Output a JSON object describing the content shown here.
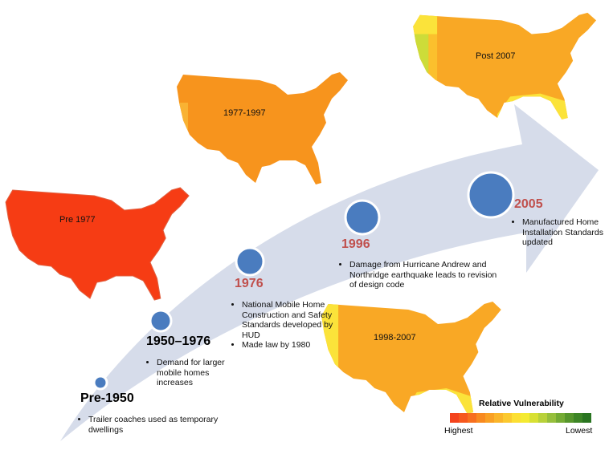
{
  "timeline": {
    "milestones": [
      {
        "label": "Pre-1950",
        "bullets": [
          "Trailer coaches used as temporary dwellings"
        ]
      },
      {
        "label": "1950–1976",
        "bullets": [
          "Demand for larger mobile homes increases"
        ]
      },
      {
        "label": "1976",
        "bullets": [
          "National Mobile Home Construction and Safety Standards developed by HUD",
          "Made law by 1980"
        ]
      },
      {
        "label": "1996",
        "bullets": [
          "Damage from Hurricane Andrew and Northridge earthquake leads to revision of design code"
        ]
      },
      {
        "label": "2005",
        "bullets": [
          "Manufactured Home Installation Standards updated"
        ]
      }
    ]
  },
  "maps": [
    {
      "label": "Pre 1977"
    },
    {
      "label": "1977-1997"
    },
    {
      "label": "1998-2007"
    },
    {
      "label": "Post 2007"
    }
  ],
  "legend": {
    "title": "Relative Vulnerability",
    "high_label": "Highest",
    "low_label": "Lowest"
  }
}
